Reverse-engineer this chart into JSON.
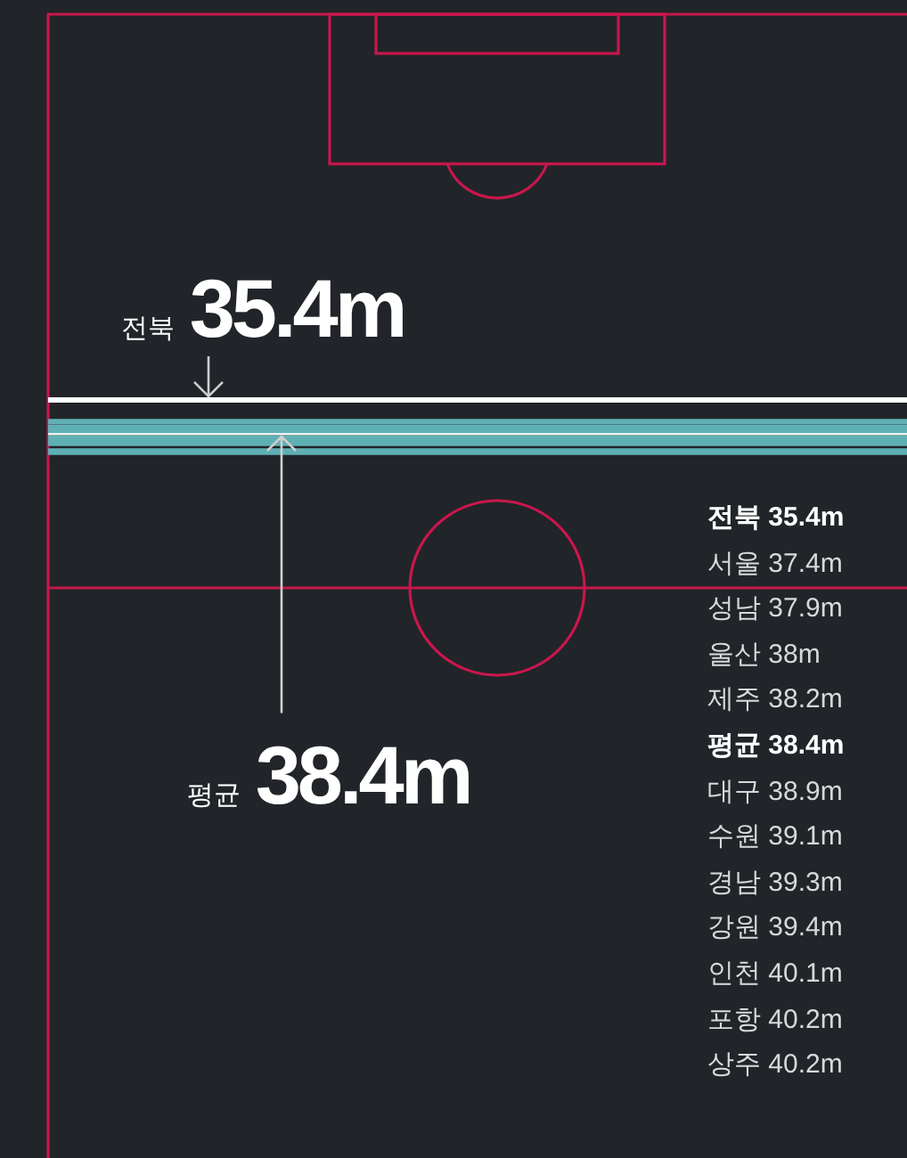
{
  "chart_data": {
    "type": "other",
    "categories": [
      "전북",
      "서울",
      "성남",
      "울산",
      "제주",
      "평균",
      "대구",
      "수원",
      "경남",
      "강원",
      "인천",
      "포항",
      "상주"
    ],
    "values": [
      35.4,
      37.4,
      37.9,
      38,
      38.2,
      38.4,
      38.9,
      39.1,
      39.3,
      39.4,
      40.1,
      40.2,
      40.2
    ],
    "value_labels": [
      "35.4m",
      "37.4m",
      "37.9m",
      "38m",
      "38.2m",
      "38.4m",
      "38.9m",
      "39.1m",
      "39.3m",
      "39.4m",
      "40.1m",
      "40.2m",
      "40.2m"
    ],
    "colors": [
      "#ffffff",
      "#5fb0b4",
      "#5fb0b4",
      "#5fb0b4",
      "#5fb0b4",
      "#ffffff",
      "#5fb0b4",
      "#5fb0b4",
      "#5fb0b4",
      "#5fb0b4",
      "#5fb0b4",
      "#5fb0b4",
      "#5fb0b4"
    ],
    "annotations": [
      "전북 35.4m",
      "평균 38.4m"
    ]
  }
}
